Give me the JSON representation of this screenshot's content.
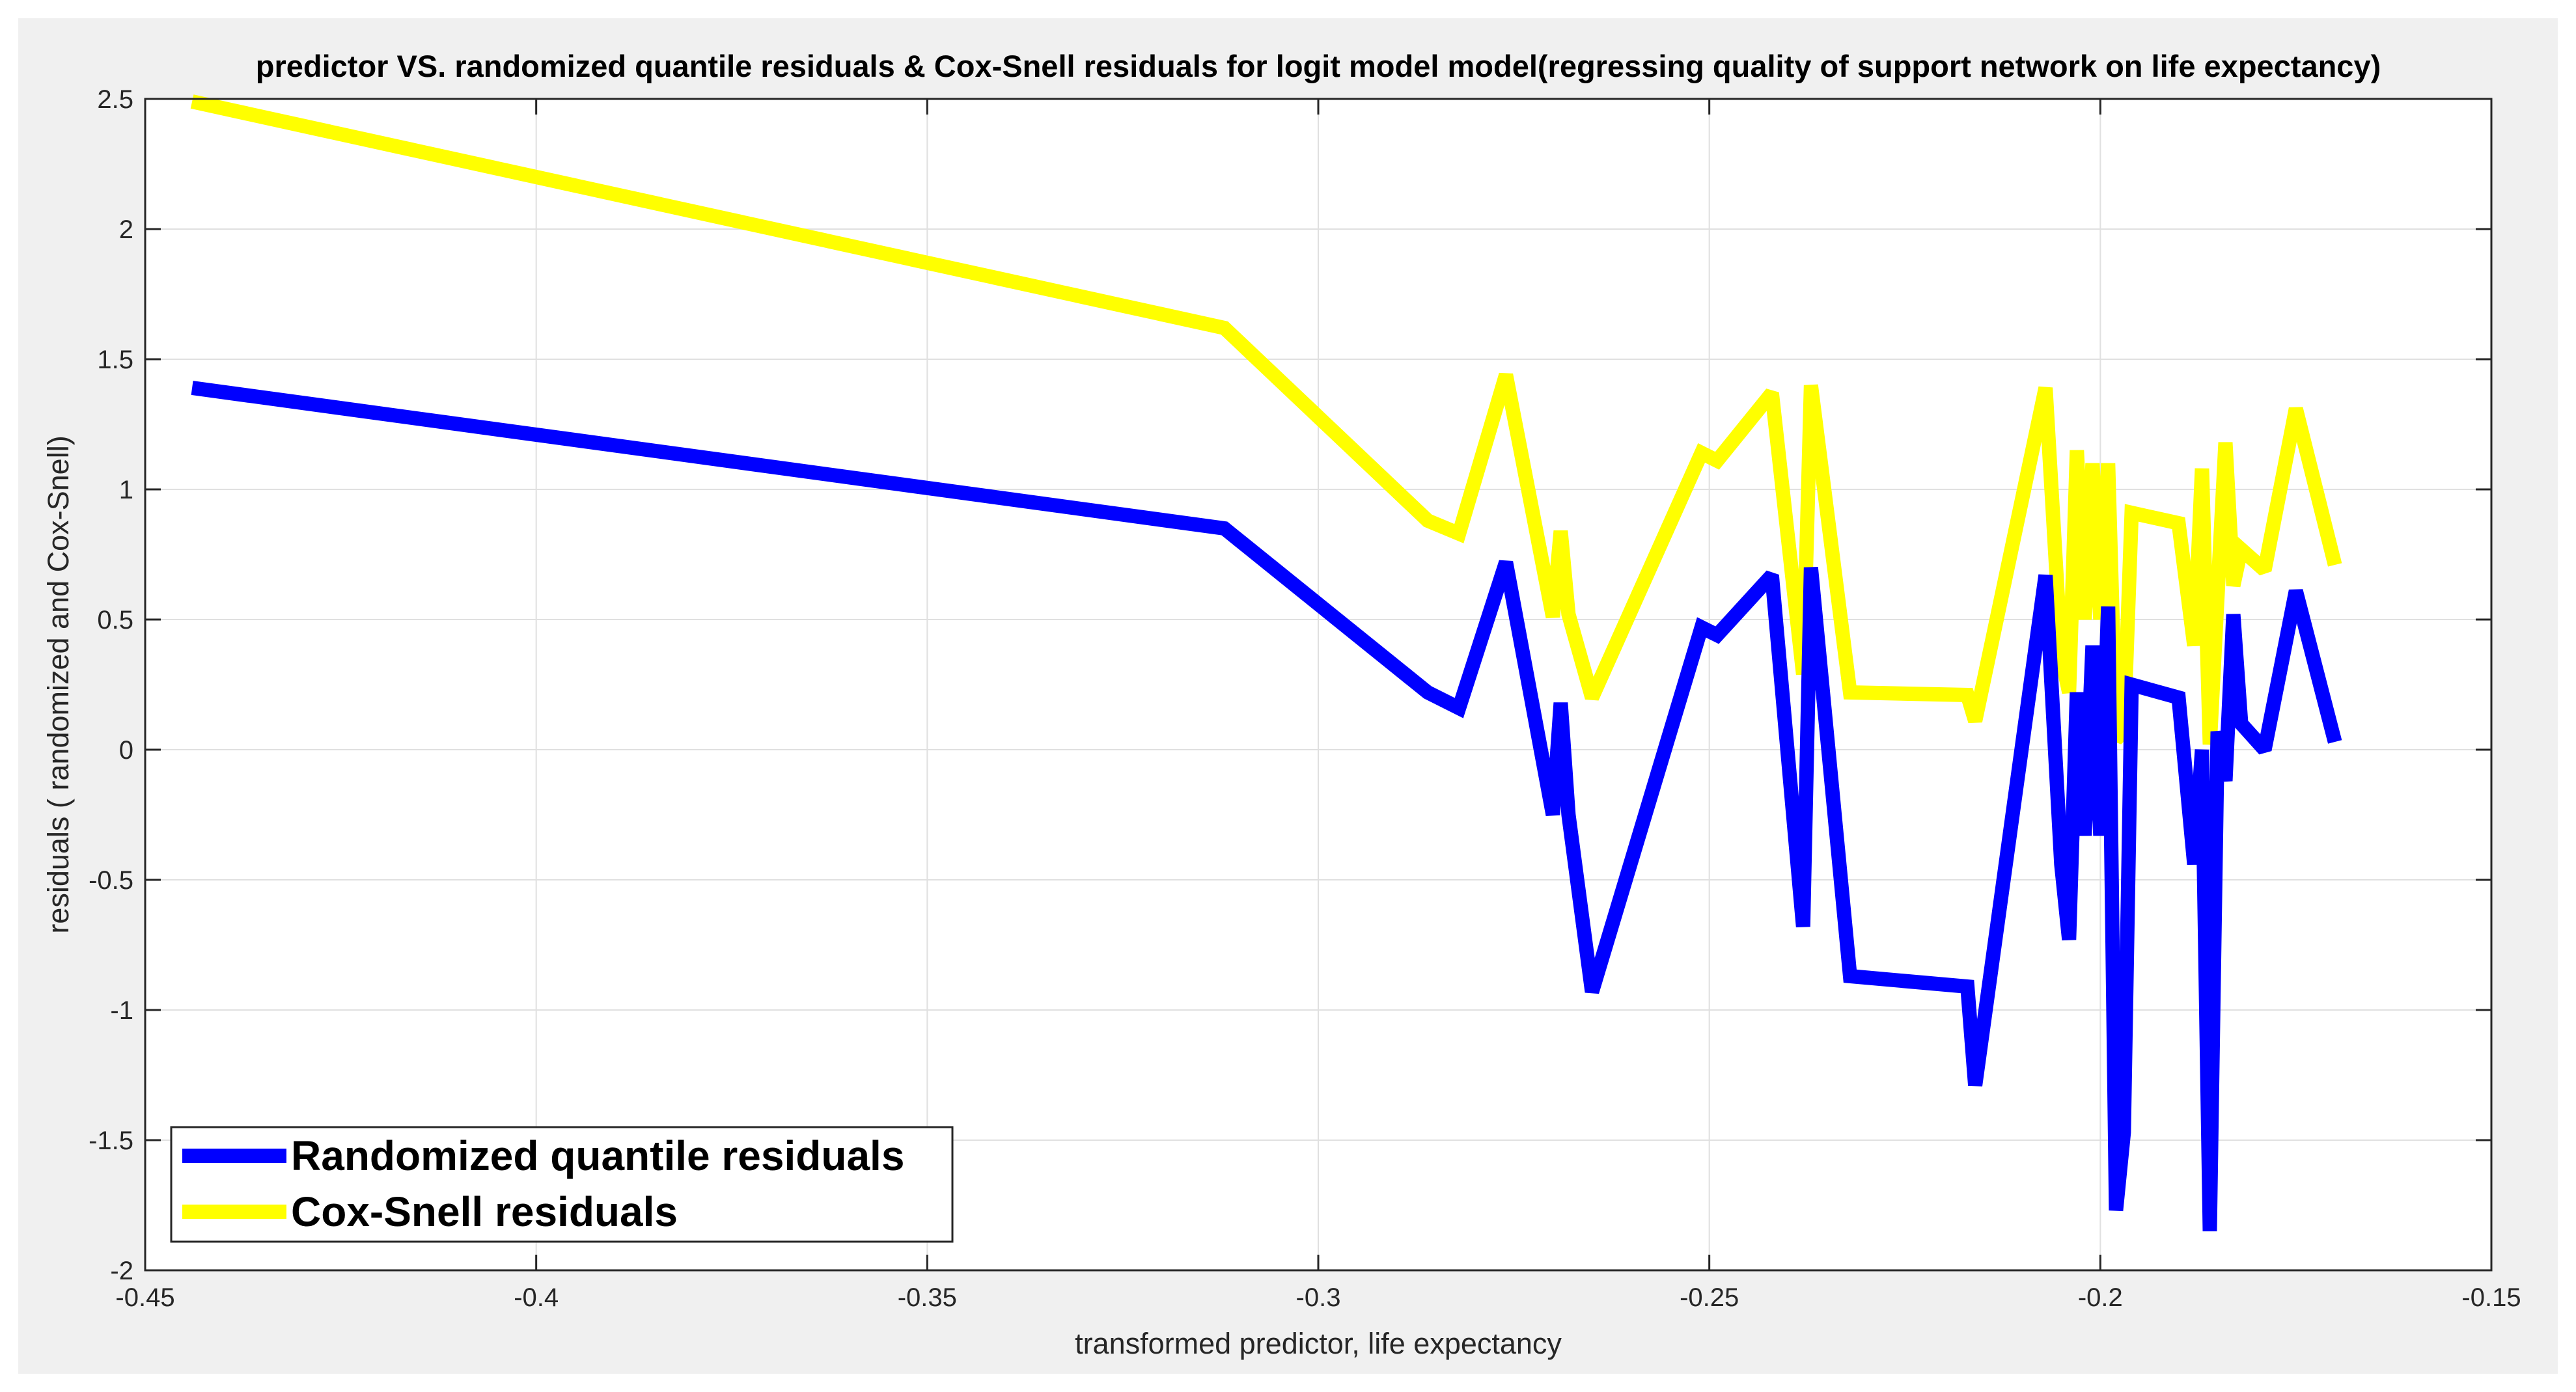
{
  "chart_data": {
    "type": "line",
    "title": "predictor VS. randomized quantile residuals & Cox-Snell residuals for logit model model(regressing quality of support network on life expectancy)",
    "xlabel": "transformed predictor, life expectancy",
    "ylabel": "residuals ( randomized and Cox-Snell)",
    "xlim": [
      -0.45,
      -0.15
    ],
    "ylim": [
      -2,
      2.5
    ],
    "xticks": [
      -0.45,
      -0.4,
      -0.35,
      -0.3,
      -0.25,
      -0.2,
      -0.15
    ],
    "xtick_labels": [
      "-0.45",
      "-0.4",
      "-0.35",
      "-0.3",
      "-0.25",
      "-0.2",
      "-0.15"
    ],
    "yticks": [
      -2,
      -1.5,
      -1,
      -0.5,
      0,
      0.5,
      1,
      1.5,
      2,
      2.5
    ],
    "ytick_labels": [
      "-2",
      "-1.5",
      "-1",
      "-0.5",
      "0",
      "0.5",
      "1",
      "1.5",
      "2",
      "2.5"
    ],
    "grid": true,
    "legend_position": "bottom-left",
    "series": [
      {
        "name": "Randomized quantile residuals",
        "color": "#0000ff",
        "points": [
          [
            -0.444,
            1.39
          ],
          [
            -0.312,
            0.85
          ],
          [
            -0.286,
            0.22
          ],
          [
            -0.282,
            0.16
          ],
          [
            -0.276,
            0.72
          ],
          [
            -0.27,
            -0.25
          ],
          [
            -0.269,
            0.18
          ],
          [
            -0.268,
            -0.25
          ],
          [
            -0.265,
            -0.93
          ],
          [
            -0.251,
            0.47
          ],
          [
            -0.249,
            0.44
          ],
          [
            -0.242,
            0.67
          ],
          [
            -0.238,
            -0.68
          ],
          [
            -0.237,
            0.7
          ],
          [
            -0.232,
            -0.87
          ],
          [
            -0.217,
            -0.91
          ],
          [
            -0.216,
            -1.29
          ],
          [
            -0.207,
            0.67
          ],
          [
            -0.205,
            -0.44
          ],
          [
            -0.204,
            -0.73
          ],
          [
            -0.203,
            0.22
          ],
          [
            -0.202,
            -0.33
          ],
          [
            -0.201,
            0.4
          ],
          [
            -0.2,
            -0.33
          ],
          [
            -0.199,
            0.55
          ],
          [
            -0.198,
            -1.77
          ],
          [
            -0.197,
            -1.47
          ],
          [
            -0.196,
            0.25
          ],
          [
            -0.19,
            0.2
          ],
          [
            -0.188,
            -0.44
          ],
          [
            -0.187,
            0.0
          ],
          [
            -0.186,
            -1.85
          ],
          [
            -0.185,
            0.07
          ],
          [
            -0.184,
            -0.12
          ],
          [
            -0.183,
            0.52
          ],
          [
            -0.182,
            0.1
          ],
          [
            -0.179,
            0.0
          ],
          [
            -0.175,
            0.61
          ],
          [
            -0.17,
            0.03
          ]
        ]
      },
      {
        "name": "Cox-Snell residuals",
        "color": "#ffff00",
        "points": [
          [
            -0.444,
            2.49
          ],
          [
            -0.312,
            1.62
          ],
          [
            -0.286,
            0.88
          ],
          [
            -0.282,
            0.83
          ],
          [
            -0.276,
            1.44
          ],
          [
            -0.27,
            0.51
          ],
          [
            -0.269,
            0.84
          ],
          [
            -0.268,
            0.52
          ],
          [
            -0.265,
            0.2
          ],
          [
            -0.251,
            1.14
          ],
          [
            -0.249,
            1.11
          ],
          [
            -0.242,
            1.37
          ],
          [
            -0.238,
            0.29
          ],
          [
            -0.237,
            1.4
          ],
          [
            -0.232,
            0.22
          ],
          [
            -0.217,
            0.21
          ],
          [
            -0.216,
            0.11
          ],
          [
            -0.207,
            1.39
          ],
          [
            -0.205,
            0.36
          ],
          [
            -0.204,
            0.22
          ],
          [
            -0.203,
            1.15
          ],
          [
            -0.202,
            0.5
          ],
          [
            -0.201,
            1.1
          ],
          [
            -0.2,
            0.5
          ],
          [
            -0.199,
            1.1
          ],
          [
            -0.198,
            0.04
          ],
          [
            -0.197,
            0.07
          ],
          [
            -0.196,
            0.91
          ],
          [
            -0.19,
            0.87
          ],
          [
            -0.188,
            0.4
          ],
          [
            -0.187,
            1.08
          ],
          [
            -0.186,
            0.02
          ],
          [
            -0.185,
            0.6
          ],
          [
            -0.184,
            1.18
          ],
          [
            -0.183,
            0.63
          ],
          [
            -0.182,
            0.77
          ],
          [
            -0.179,
            0.69
          ],
          [
            -0.175,
            1.31
          ],
          [
            -0.17,
            0.71
          ]
        ]
      }
    ]
  }
}
